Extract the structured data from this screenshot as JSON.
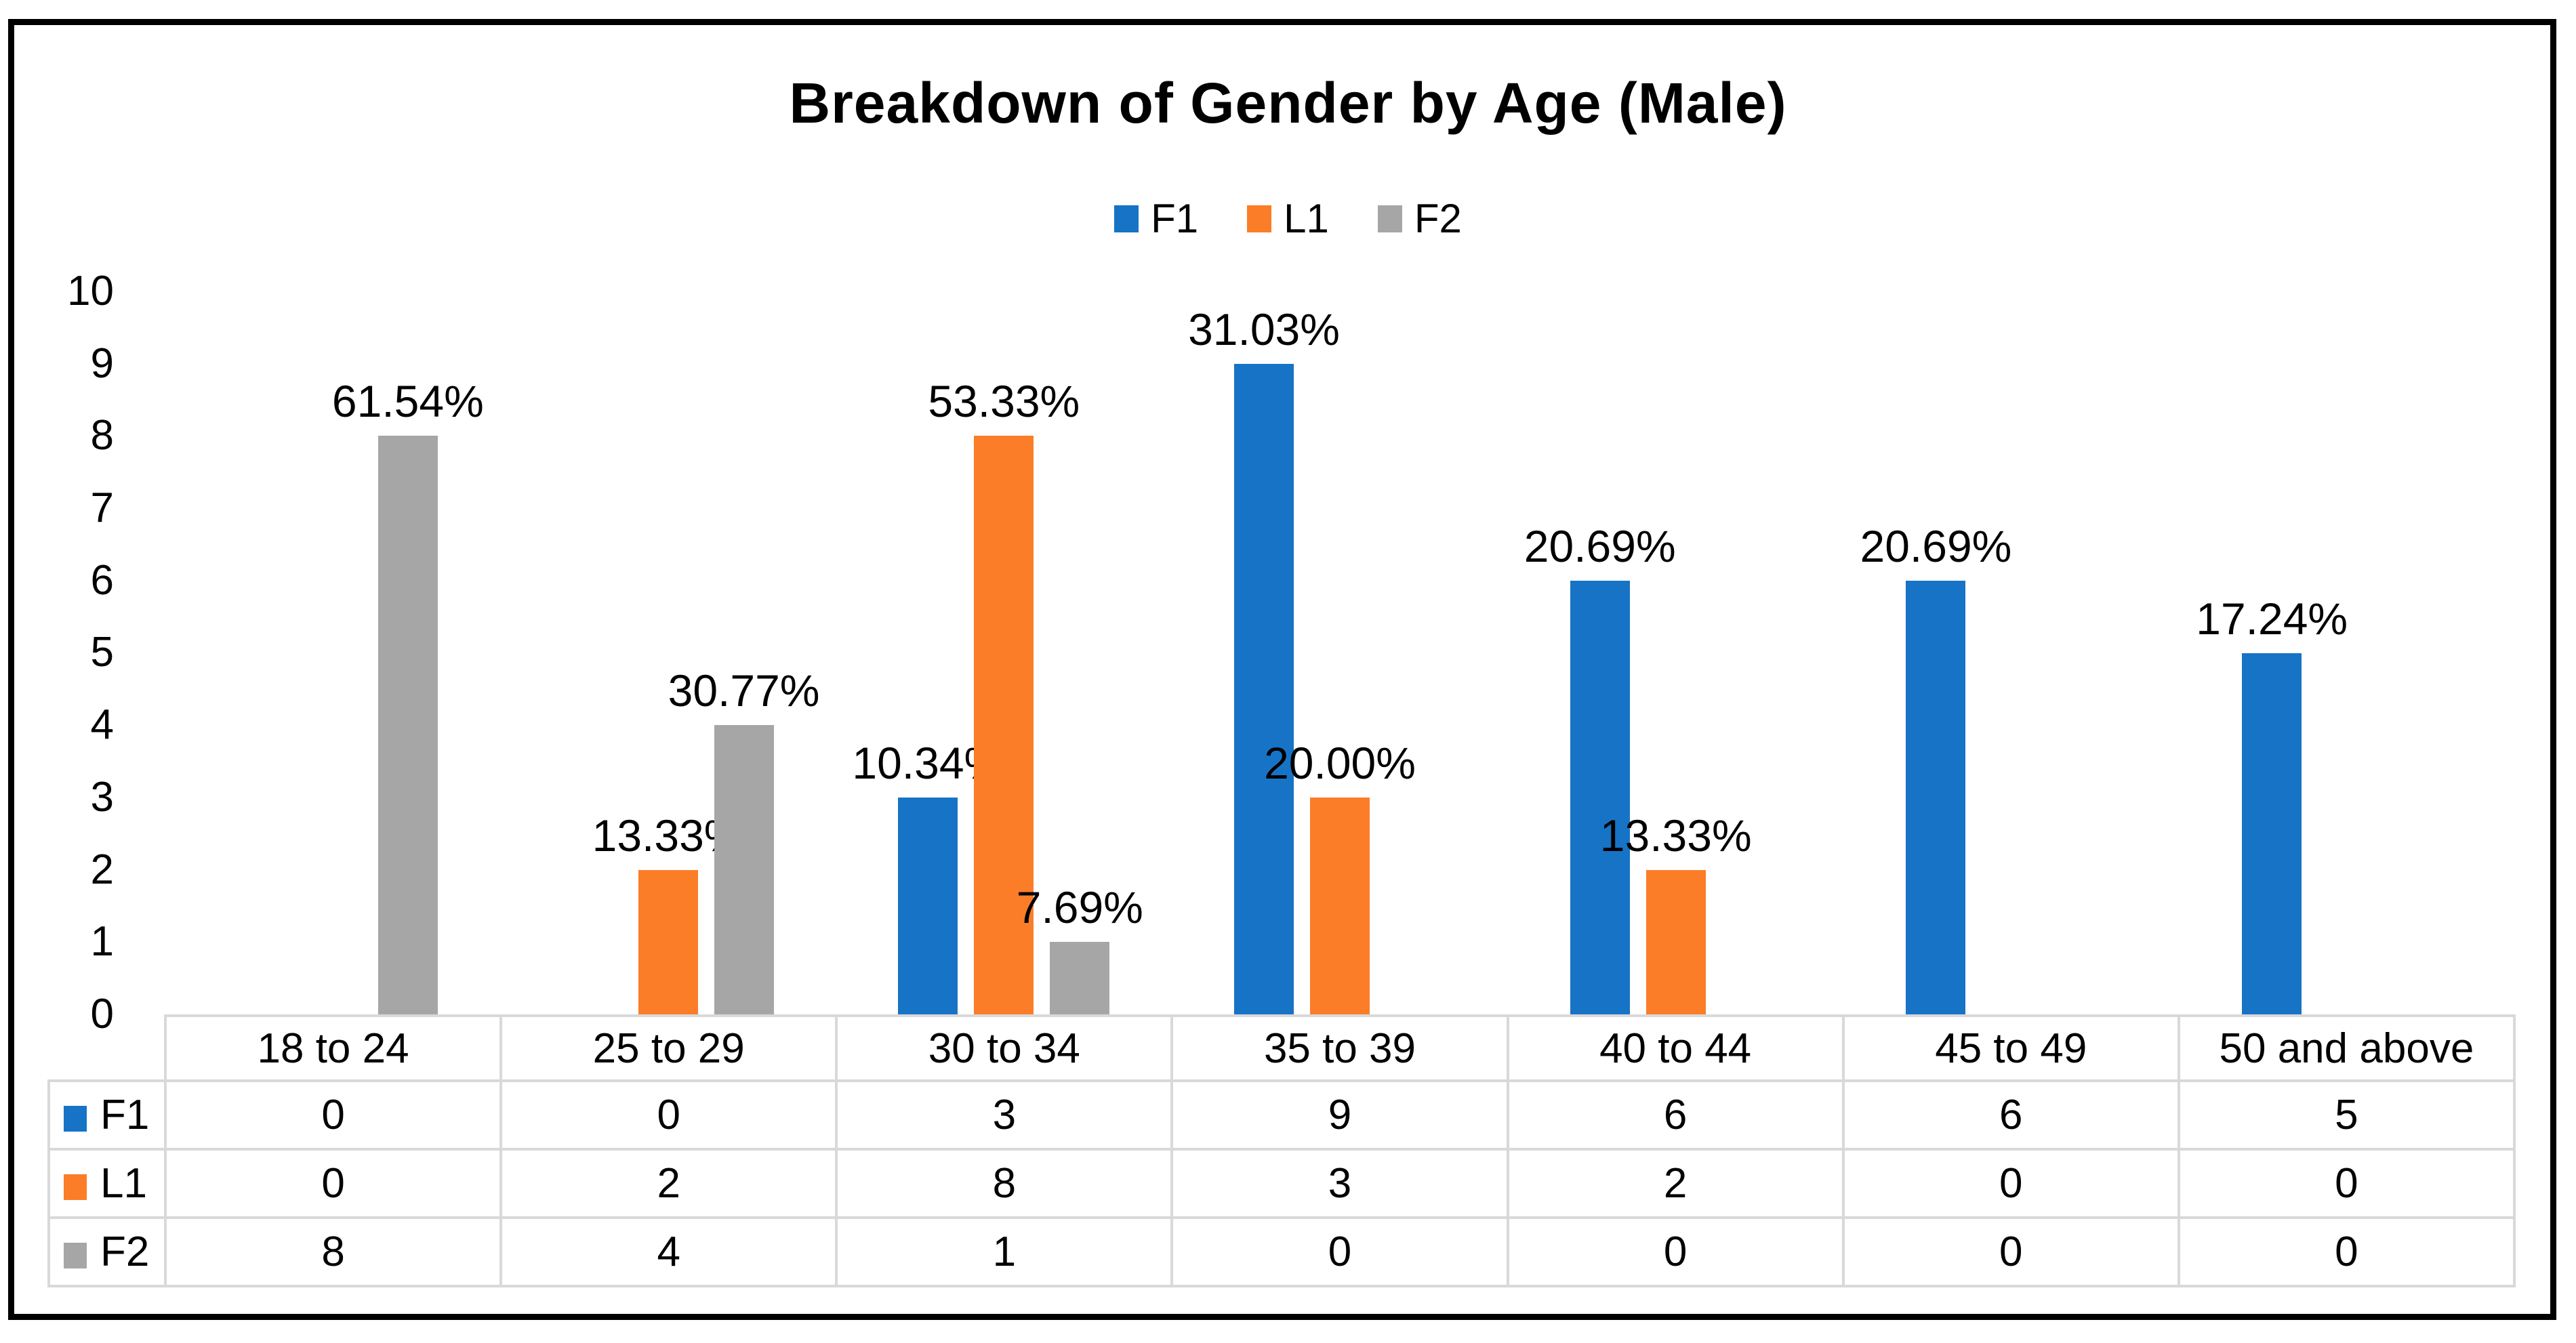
{
  "chart_data": {
    "type": "bar",
    "title": "Breakdown of Gender by Age (Male)",
    "categories": [
      "18 to 24",
      "25 to 29",
      "30 to 34",
      "35 to 39",
      "40 to 44",
      "45 to 49",
      "50 and above"
    ],
    "series": [
      {
        "name": "F1",
        "color": "#1773C6",
        "values": [
          0,
          0,
          3,
          9,
          6,
          6,
          5
        ],
        "data_labels": [
          "",
          "",
          "10.34%",
          "31.03%",
          "20.69%",
          "20.69%",
          "17.24%"
        ]
      },
      {
        "name": "L1",
        "color": "#FB7D28",
        "values": [
          0,
          2,
          8,
          3,
          2,
          0,
          0
        ],
        "data_labels": [
          "",
          "13.33%",
          "53.33%",
          "20.00%",
          "13.33%",
          "",
          ""
        ]
      },
      {
        "name": "F2",
        "color": "#A6A6A6",
        "values": [
          8,
          4,
          1,
          0,
          0,
          0,
          0
        ],
        "data_labels": [
          "61.54%",
          "30.77%",
          "7.69%",
          "",
          "",
          "",
          ""
        ]
      }
    ],
    "y_axis": {
      "min": 0,
      "max": 10,
      "ticks": [
        "10",
        "9",
        "8",
        "7",
        "6",
        "5",
        "4",
        "3",
        "2",
        "1",
        "0"
      ]
    },
    "legend_position": "top-center",
    "grid": false,
    "data_table_shown": true
  }
}
